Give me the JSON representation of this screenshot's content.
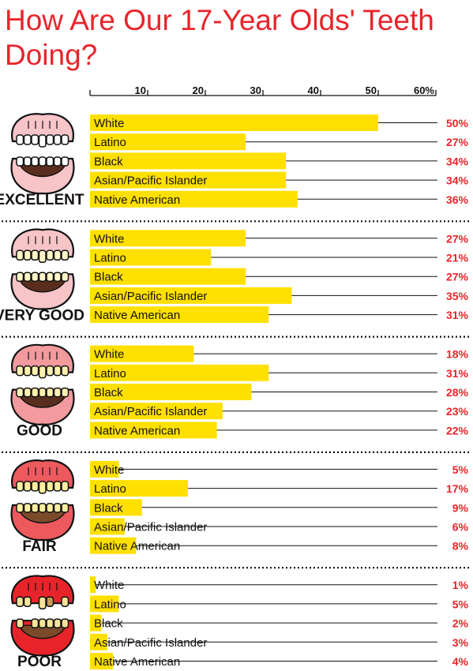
{
  "colors": {
    "title": "#e8242b",
    "bar": "#ffe000",
    "percent": "#e8242b",
    "text": "#111111",
    "gum_excellent": "#f7c4c8",
    "gum_very_good": "#f7c4c8",
    "gum_good": "#f29a9e",
    "gum_fair": "#ec5a5e",
    "gum_poor": "#e8242b"
  },
  "chart_data": {
    "type": "bar",
    "orientation": "horizontal",
    "title": "How Are Our 17-Year Olds' Teeth Doing?",
    "xlabel": "",
    "ylabel": "",
    "xlim": [
      0,
      60
    ],
    "ticks": [
      "10",
      "20",
      "30",
      "40",
      "50",
      "60%"
    ],
    "tick_values": [
      10,
      20,
      30,
      40,
      50,
      60
    ],
    "grid": false,
    "legend": "none",
    "categories": [
      "White",
      "Latino",
      "Black",
      "Asian/Pacific Islander",
      "Native American"
    ],
    "groups": [
      {
        "name": "EXCELLENT",
        "icon": "teeth-excellent-icon",
        "values": [
          50,
          27,
          34,
          34,
          36
        ],
        "labels": [
          "50%",
          "27%",
          "34%",
          "34%",
          "36%"
        ]
      },
      {
        "name": "VERY GOOD",
        "icon": "teeth-very-good-icon",
        "values": [
          27,
          21,
          27,
          35,
          31
        ],
        "labels": [
          "27%",
          "21%",
          "27%",
          "35%",
          "31%"
        ]
      },
      {
        "name": "GOOD",
        "icon": "teeth-good-icon",
        "values": [
          18,
          31,
          28,
          23,
          22
        ],
        "labels": [
          "18%",
          "31%",
          "28%",
          "23%",
          "22%"
        ]
      },
      {
        "name": "FAIR",
        "icon": "teeth-fair-icon",
        "values": [
          5,
          17,
          9,
          6,
          8
        ],
        "labels": [
          "5%",
          "17%",
          "9%",
          "6%",
          "8%"
        ]
      },
      {
        "name": "POOR",
        "icon": "teeth-poor-icon",
        "values": [
          1,
          5,
          2,
          3,
          4
        ],
        "labels": [
          "1%",
          "5%",
          "2%",
          "3%",
          "4%"
        ]
      }
    ]
  }
}
